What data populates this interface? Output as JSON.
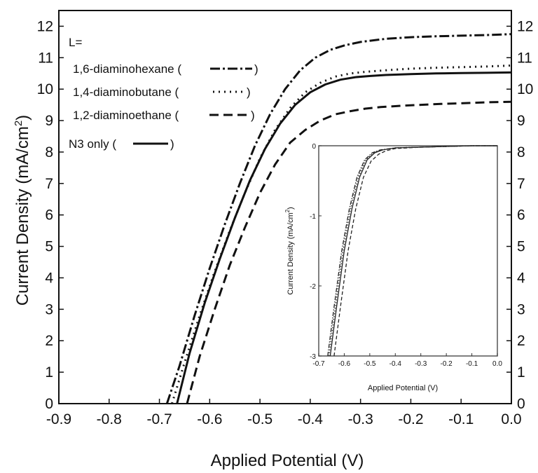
{
  "chart_data": [
    {
      "type": "line",
      "xlabel": "Applied Potential (V)",
      "ylabel": "Current Density (mA/cm",
      "ylabel_sup": "2",
      "ylabel_close": ")",
      "xlim": [
        -0.9,
        0.0
      ],
      "ylim": [
        0,
        12.5
      ],
      "xticks": [
        "-0.9",
        "-0.8",
        "-0.7",
        "-0.6",
        "-0.5",
        "-0.4",
        "-0.3",
        "-0.2",
        "-0.1",
        "0.0"
      ],
      "yticks": [
        "0",
        "1",
        "2",
        "3",
        "4",
        "5",
        "6",
        "7",
        "8",
        "9",
        "10",
        "11",
        "12"
      ],
      "right_yticks": [
        "0",
        "1",
        "2",
        "3",
        "4",
        "5",
        "6",
        "7",
        "8",
        "9",
        "10",
        "11",
        "12"
      ],
      "grid": false,
      "legend": {
        "title": "L=",
        "placement": "top-left",
        "entries": [
          {
            "label": "1,6-diaminohexane (",
            "close": ")",
            "style": "dash-dot"
          },
          {
            "label": "1,4-diaminobutane (",
            "close": ")",
            "style": "dotted"
          },
          {
            "label": "1,2-diaminoethane (",
            "close": ")",
            "style": "dashed"
          },
          {
            "label": "N3 only (",
            "close": ")",
            "style": "solid"
          }
        ]
      },
      "series": [
        {
          "name": "1,6-diaminohexane",
          "style": "dash-dot",
          "x": [
            -0.685,
            -0.66,
            -0.63,
            -0.6,
            -0.57,
            -0.54,
            -0.51,
            -0.48,
            -0.45,
            -0.42,
            -0.39,
            -0.36,
            -0.33,
            -0.3,
            -0.25,
            -0.2,
            -0.15,
            -0.1,
            -0.05,
            0.0
          ],
          "y": [
            0,
            1.2,
            2.8,
            4.3,
            5.7,
            7.0,
            8.2,
            9.2,
            10.0,
            10.6,
            11.0,
            11.25,
            11.4,
            11.5,
            11.6,
            11.65,
            11.68,
            11.7,
            11.72,
            11.75
          ]
        },
        {
          "name": "1,4-diaminobutane",
          "style": "dotted",
          "x": [
            -0.675,
            -0.65,
            -0.62,
            -0.59,
            -0.56,
            -0.53,
            -0.5,
            -0.47,
            -0.44,
            -0.41,
            -0.38,
            -0.35,
            -0.32,
            -0.29,
            -0.25,
            -0.2,
            -0.15,
            -0.1,
            -0.05,
            0.0
          ],
          "y": [
            0,
            1.3,
            2.8,
            4.2,
            5.5,
            6.7,
            7.8,
            8.7,
            9.4,
            9.9,
            10.2,
            10.4,
            10.5,
            10.55,
            10.6,
            10.65,
            10.68,
            10.7,
            10.72,
            10.75
          ]
        },
        {
          "name": "N3 only",
          "style": "solid",
          "x": [
            -0.665,
            -0.64,
            -0.61,
            -0.58,
            -0.55,
            -0.52,
            -0.49,
            -0.46,
            -0.43,
            -0.4,
            -0.37,
            -0.34,
            -0.31,
            -0.28,
            -0.25,
            -0.2,
            -0.15,
            -0.1,
            -0.05,
            0.0
          ],
          "y": [
            0,
            1.6,
            3.2,
            4.6,
            5.9,
            7.1,
            8.1,
            8.9,
            9.5,
            9.9,
            10.15,
            10.3,
            10.38,
            10.42,
            10.45,
            10.48,
            10.5,
            10.51,
            10.52,
            10.53
          ]
        },
        {
          "name": "1,2-diaminoethane",
          "style": "dashed",
          "x": [
            -0.645,
            -0.62,
            -0.59,
            -0.56,
            -0.53,
            -0.5,
            -0.47,
            -0.44,
            -0.41,
            -0.38,
            -0.35,
            -0.32,
            -0.29,
            -0.26,
            -0.22,
            -0.18,
            -0.14,
            -0.1,
            -0.05,
            0.0
          ],
          "y": [
            0,
            1.5,
            3.0,
            4.4,
            5.6,
            6.7,
            7.6,
            8.3,
            8.7,
            9.0,
            9.2,
            9.3,
            9.38,
            9.43,
            9.47,
            9.5,
            9.53,
            9.55,
            9.58,
            9.6
          ]
        }
      ]
    },
    {
      "type": "line",
      "inset": true,
      "xlabel": "Applied Potential (V)",
      "ylabel": "Current Density (mA/cm",
      "ylabel_sup": "2",
      "ylabel_close": ")",
      "xlim": [
        -0.7,
        0.0
      ],
      "ylim": [
        -3,
        0
      ],
      "xticks": [
        "-0.7",
        "-0.6",
        "-0.5",
        "-0.4",
        "-0.3",
        "-0.2",
        "-0.1",
        "0.0"
      ],
      "yticks": [
        "0",
        "-1",
        "-2",
        "-3"
      ],
      "series": [
        {
          "style": "dash-dot",
          "x": [
            -0.665,
            -0.64,
            -0.61,
            -0.58,
            -0.55,
            -0.52,
            -0.49,
            -0.46,
            -0.4,
            -0.3,
            -0.2,
            -0.1,
            0.0
          ],
          "y": [
            -3.0,
            -2.3,
            -1.5,
            -0.9,
            -0.45,
            -0.2,
            -0.1,
            -0.06,
            -0.03,
            -0.02,
            -0.01,
            0,
            0
          ]
        },
        {
          "style": "dotted",
          "x": [
            -0.66,
            -0.635,
            -0.605,
            -0.575,
            -0.545,
            -0.515,
            -0.485,
            -0.455,
            -0.4,
            -0.3,
            -0.2,
            -0.1,
            0.0
          ],
          "y": [
            -3.0,
            -2.3,
            -1.5,
            -0.9,
            -0.45,
            -0.2,
            -0.1,
            -0.06,
            -0.03,
            -0.02,
            -0.01,
            0,
            0
          ]
        },
        {
          "style": "solid",
          "x": [
            -0.655,
            -0.63,
            -0.6,
            -0.57,
            -0.54,
            -0.51,
            -0.48,
            -0.45,
            -0.4,
            -0.3,
            -0.2,
            -0.1,
            0.0
          ],
          "y": [
            -3.0,
            -2.3,
            -1.5,
            -0.9,
            -0.45,
            -0.2,
            -0.1,
            -0.06,
            -0.03,
            -0.02,
            -0.01,
            0,
            0
          ]
        },
        {
          "style": "dashed",
          "x": [
            -0.64,
            -0.615,
            -0.585,
            -0.555,
            -0.525,
            -0.495,
            -0.465,
            -0.435,
            -0.4,
            -0.3,
            -0.2,
            -0.1,
            0.0
          ],
          "y": [
            -3.0,
            -2.3,
            -1.5,
            -0.9,
            -0.45,
            -0.22,
            -0.12,
            -0.07,
            -0.04,
            -0.02,
            -0.01,
            0,
            0
          ]
        }
      ]
    }
  ]
}
